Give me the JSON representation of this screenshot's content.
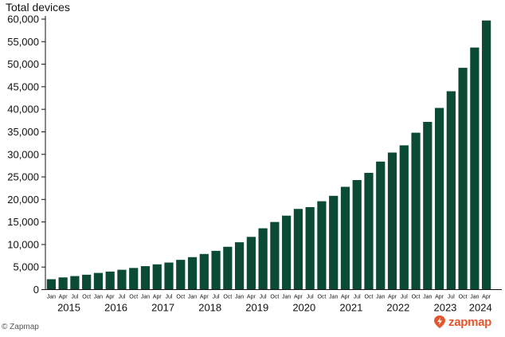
{
  "credit": "© Zapmap",
  "brand": {
    "name": "zapmap",
    "icon": "zapmap-logo-icon",
    "color": "#e4572e"
  },
  "colors": {
    "bar": "#0b4a35",
    "axis": "#111111"
  },
  "chart_data": {
    "type": "bar",
    "ylabel": "Total devices",
    "ylim": [
      0,
      60000
    ],
    "yticks": [
      0,
      5000,
      10000,
      15000,
      20000,
      25000,
      30000,
      35000,
      40000,
      45000,
      50000,
      55000,
      60000
    ],
    "ytick_labels": [
      "0",
      "5,000",
      "10,000",
      "15,000",
      "20,000",
      "25,000",
      "30,000",
      "35,000",
      "40,000",
      "45,000",
      "50,000",
      "55,000",
      "60,000"
    ],
    "grid": false,
    "categories": [
      "Jan 2015",
      "Apr 2015",
      "Jul 2015",
      "Oct 2015",
      "Jan 2016",
      "Apr 2016",
      "Jul 2016",
      "Oct 2016",
      "Jan 2017",
      "Apr 2017",
      "Jul 2017",
      "Oct 2017",
      "Jan 2018",
      "Apr 2018",
      "Jul 2018",
      "Oct 2018",
      "Jan 2019",
      "Apr 2019",
      "Jul 2019",
      "Oct 2019",
      "Jan 2020",
      "Apr 2020",
      "Jul 2020",
      "Oct 2020",
      "Jan 2021",
      "Apr 2021",
      "Jul 2021",
      "Oct 2021",
      "Jan 2022",
      "Apr 2022",
      "Jul 2022",
      "Oct 2022",
      "Jan 2023",
      "Apr 2023",
      "Jul 2023",
      "Oct 2023",
      "Jan 2024",
      "Apr 2024"
    ],
    "month_labels": [
      "Jan",
      "Apr",
      "Jul",
      "Oct",
      "Jan",
      "Apr",
      "Jul",
      "Oct",
      "Jan",
      "Apr",
      "Jul",
      "Oct",
      "Jan",
      "Apr",
      "Jul",
      "Oct",
      "Jan",
      "Apr",
      "Jul",
      "Oct",
      "Jan",
      "Apr",
      "Jul",
      "Oct",
      "Jan",
      "Apr",
      "Jul",
      "Oct",
      "Jan",
      "Apr",
      "Jul",
      "Oct",
      "Jan",
      "Apr",
      "Jul",
      "Oct",
      "Jan",
      "Apr"
    ],
    "years": [
      {
        "label": "2015",
        "start": 0,
        "count": 4
      },
      {
        "label": "2016",
        "start": 4,
        "count": 4
      },
      {
        "label": "2017",
        "start": 8,
        "count": 4
      },
      {
        "label": "2018",
        "start": 12,
        "count": 4
      },
      {
        "label": "2019",
        "start": 16,
        "count": 4
      },
      {
        "label": "2020",
        "start": 20,
        "count": 4
      },
      {
        "label": "2021",
        "start": 24,
        "count": 4
      },
      {
        "label": "2022",
        "start": 28,
        "count": 4
      },
      {
        "label": "2023",
        "start": 32,
        "count": 4
      },
      {
        "label": "2024",
        "start": 36,
        "count": 2
      }
    ],
    "values": [
      2300,
      2700,
      3000,
      3300,
      3700,
      4000,
      4400,
      4800,
      5200,
      5600,
      6000,
      6600,
      7200,
      7900,
      8600,
      9500,
      10500,
      11700,
      13600,
      15000,
      16400,
      17900,
      18300,
      19600,
      20800,
      22800,
      24300,
      25900,
      28400,
      30400,
      32000,
      34800,
      37200,
      40300,
      44000,
      49200,
      53700,
      59700
    ]
  }
}
